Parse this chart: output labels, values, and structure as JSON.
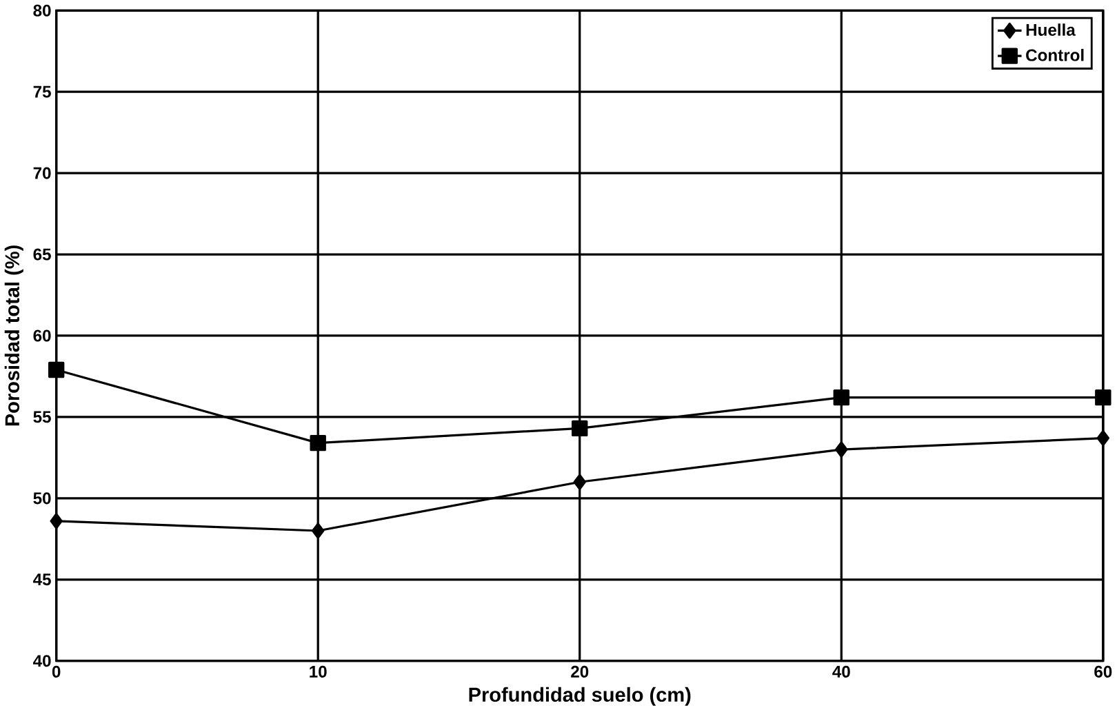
{
  "chart_data": {
    "type": "line",
    "xlabel": "Profundidad  suelo  (cm)",
    "ylabel": "Porosidad  total  (%)",
    "categories": [
      "0",
      "10",
      "20",
      "40",
      "60"
    ],
    "series": [
      {
        "name": "Huella",
        "color": "#000000",
        "marker": "diamond",
        "values": [
          48.6,
          48.0,
          51.0,
          53.0,
          53.7
        ]
      },
      {
        "name": "Control",
        "color": "#000000",
        "marker": "square",
        "values": [
          57.9,
          53.4,
          54.3,
          56.2,
          56.2
        ]
      }
    ],
    "ylim": [
      40,
      80
    ],
    "yticks": [
      40,
      45,
      50,
      55,
      60,
      65,
      70,
      75,
      80
    ],
    "grid": true,
    "legend": "top right",
    "line_style": "solid"
  }
}
